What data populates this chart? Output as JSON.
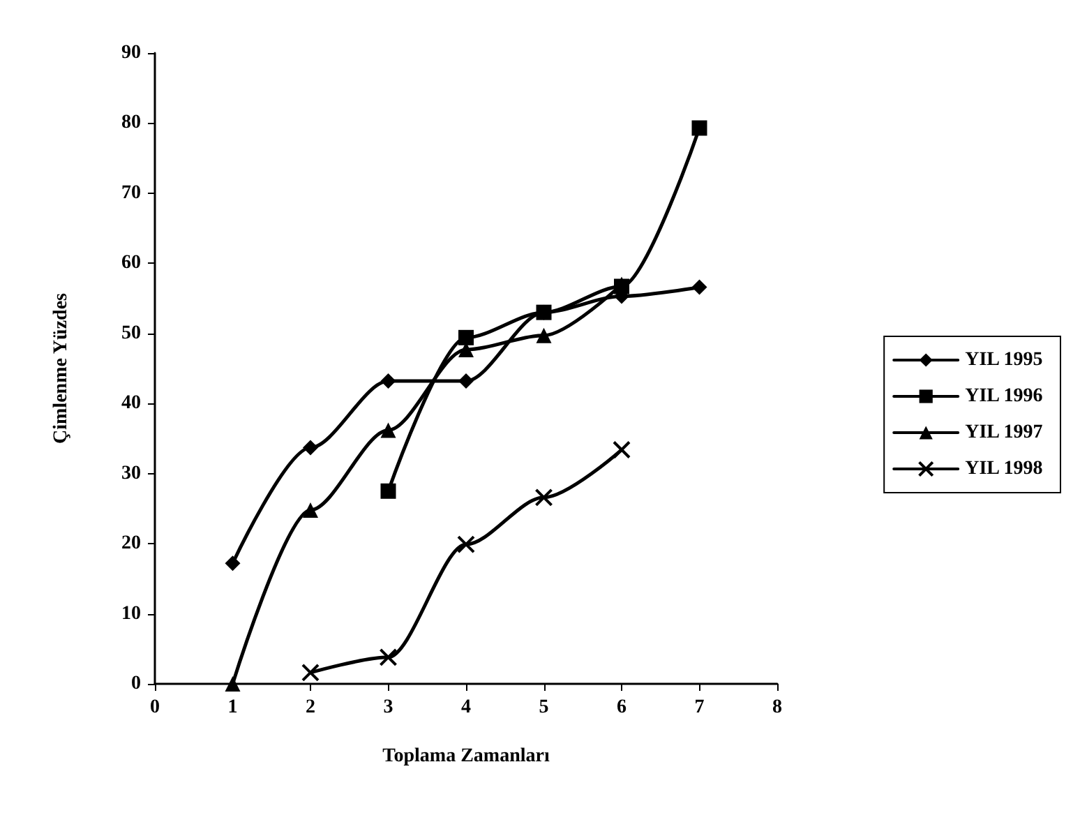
{
  "chart_data": {
    "type": "line",
    "xlabel": "Toplama Zamanları",
    "ylabel": "Çimlenme Yüzdes",
    "xlim": [
      0,
      8
    ],
    "xticks": [
      0,
      1,
      2,
      3,
      4,
      5,
      6,
      7,
      8
    ],
    "ylim": [
      0,
      90
    ],
    "yticks": [
      0,
      10,
      20,
      30,
      40,
      50,
      60,
      70,
      80,
      90
    ],
    "grid": false,
    "legend": "right",
    "line_style": "solid",
    "series": [
      {
        "name": "YIL 1995",
        "color": "#000000",
        "marker": "diamond",
        "x": [
          1,
          2,
          3,
          4,
          5,
          6,
          7
        ],
        "values": [
          17.2,
          33.7,
          43.2,
          43.2,
          53,
          55.3,
          56.6
        ]
      },
      {
        "name": "YIL 1996",
        "color": "#000000",
        "marker": "square",
        "x": [
          3,
          4,
          5,
          6,
          7
        ],
        "values": [
          27.5,
          49.4,
          53,
          56.7,
          79.3
        ]
      },
      {
        "name": "YIL 1997",
        "color": "#000000",
        "marker": "triangle",
        "x": [
          1,
          2,
          3,
          4,
          5,
          6
        ],
        "values": [
          0,
          24.8,
          36.2,
          47.7,
          49.7,
          57
        ]
      },
      {
        "name": "YIL 1998",
        "color": "#000000",
        "marker": "cross",
        "x": [
          2,
          3,
          4,
          5,
          6
        ],
        "values": [
          1.6,
          3.8,
          19.9,
          26.6,
          33.4
        ]
      }
    ]
  }
}
